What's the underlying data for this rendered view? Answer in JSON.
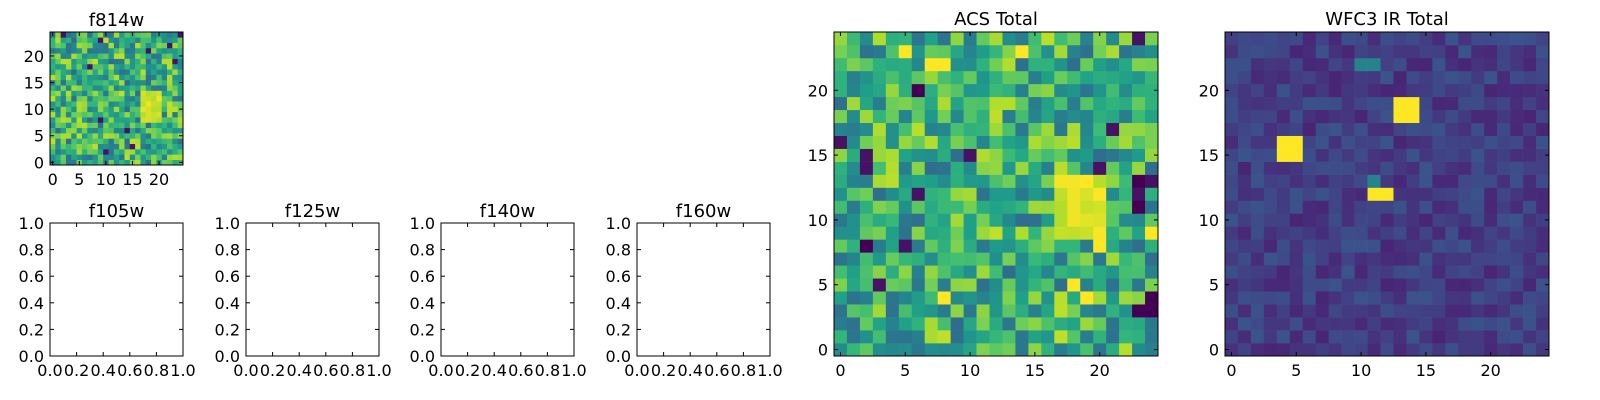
{
  "colormap": "viridis",
  "colors": {
    "axes_edge": "#000000",
    "background": "#ffffff"
  },
  "chart_data": [
    {
      "id": "f814w",
      "type": "heatmap",
      "title": "f814w",
      "xticks": [
        "0",
        "5",
        "10",
        "15",
        "20"
      ],
      "yticks": [
        "0",
        "5",
        "10",
        "15",
        "20"
      ],
      "xlim": [
        -0.5,
        24.5
      ],
      "ylim": [
        -0.5,
        24.5
      ],
      "grid_size": [
        25,
        25
      ],
      "hot_spot": {
        "x": [
          17,
          20
        ],
        "y": [
          8,
          13
        ]
      },
      "value_range": [
        0,
        1
      ],
      "mean_level": 0.63,
      "pattern_seed": 11
    },
    {
      "id": "f105w",
      "type": "empty",
      "title": "f105w",
      "xticks": [
        "0.0",
        "0.2",
        "0.4",
        "0.6",
        "0.8",
        "1.0"
      ],
      "yticks": [
        "0.0",
        "0.2",
        "0.4",
        "0.6",
        "0.8",
        "1.0"
      ],
      "xlim": [
        0,
        1
      ],
      "ylim": [
        0,
        1
      ]
    },
    {
      "id": "f125w",
      "type": "empty",
      "title": "f125w",
      "xticks": [
        "0.0",
        "0.2",
        "0.4",
        "0.6",
        "0.8",
        "1.0"
      ],
      "yticks": [
        "0.0",
        "0.2",
        "0.4",
        "0.6",
        "0.8",
        "1.0"
      ],
      "xlim": [
        0,
        1
      ],
      "ylim": [
        0,
        1
      ]
    },
    {
      "id": "f140w",
      "type": "empty",
      "title": "f140w",
      "xticks": [
        "0.0",
        "0.2",
        "0.4",
        "0.6",
        "0.8",
        "1.0"
      ],
      "yticks": [
        "0.0",
        "0.2",
        "0.4",
        "0.6",
        "0.8",
        "1.0"
      ],
      "xlim": [
        0,
        1
      ],
      "ylim": [
        0,
        1
      ]
    },
    {
      "id": "f160w",
      "type": "empty",
      "title": "f160w",
      "xticks": [
        "0.0",
        "0.2",
        "0.4",
        "0.6",
        "0.8",
        "1.0"
      ],
      "yticks": [
        "0.0",
        "0.2",
        "0.4",
        "0.6",
        "0.8",
        "1.0"
      ],
      "xlim": [
        0,
        1
      ],
      "ylim": [
        0,
        1
      ]
    },
    {
      "id": "acs-total",
      "type": "heatmap",
      "title": "ACS Total",
      "xticks": [
        "0",
        "5",
        "10",
        "15",
        "20"
      ],
      "yticks": [
        "0",
        "5",
        "10",
        "15",
        "20"
      ],
      "xlim": [
        -0.5,
        24.5
      ],
      "ylim": [
        -0.5,
        24.5
      ],
      "grid_size": [
        25,
        25
      ],
      "hot_spot": {
        "x": [
          17,
          20
        ],
        "y": [
          9,
          13
        ]
      },
      "value_range": [
        0,
        1
      ],
      "mean_level": 0.63,
      "pattern_seed": 23,
      "dark_pixels": [
        [
          6,
          20
        ],
        [
          2,
          8
        ],
        [
          23,
          13
        ],
        [
          24,
          3
        ],
        [
          23,
          3
        ],
        [
          24,
          4
        ],
        [
          23,
          11
        ]
      ],
      "bright_pixels": [
        [
          5,
          23
        ],
        [
          7,
          22
        ],
        [
          8,
          22
        ],
        [
          14,
          23
        ],
        [
          18,
          5
        ],
        [
          19,
          4
        ],
        [
          20,
          8
        ],
        [
          24,
          9
        ],
        [
          8,
          4
        ]
      ]
    },
    {
      "id": "wfc3-ir-total",
      "type": "heatmap",
      "title": "WFC3 IR Total",
      "xticks": [
        "0",
        "5",
        "10",
        "15",
        "20"
      ],
      "yticks": [
        "0",
        "5",
        "10",
        "15",
        "20"
      ],
      "xlim": [
        -0.5,
        24.5
      ],
      "ylim": [
        -0.5,
        24.5
      ],
      "grid_size": [
        25,
        25
      ],
      "value_range": [
        0,
        1
      ],
      "mean_level": 0.18,
      "pattern_seed": 37,
      "bright_pixels": [
        [
          13,
          18
        ],
        [
          14,
          18
        ],
        [
          13,
          19
        ],
        [
          14,
          19
        ],
        [
          4,
          15
        ],
        [
          5,
          15
        ],
        [
          4,
          16
        ],
        [
          5,
          16
        ],
        [
          11,
          12
        ],
        [
          12,
          12
        ]
      ],
      "mid_pixels": [
        [
          10,
          22
        ],
        [
          11,
          22
        ],
        [
          11,
          13
        ]
      ]
    }
  ]
}
